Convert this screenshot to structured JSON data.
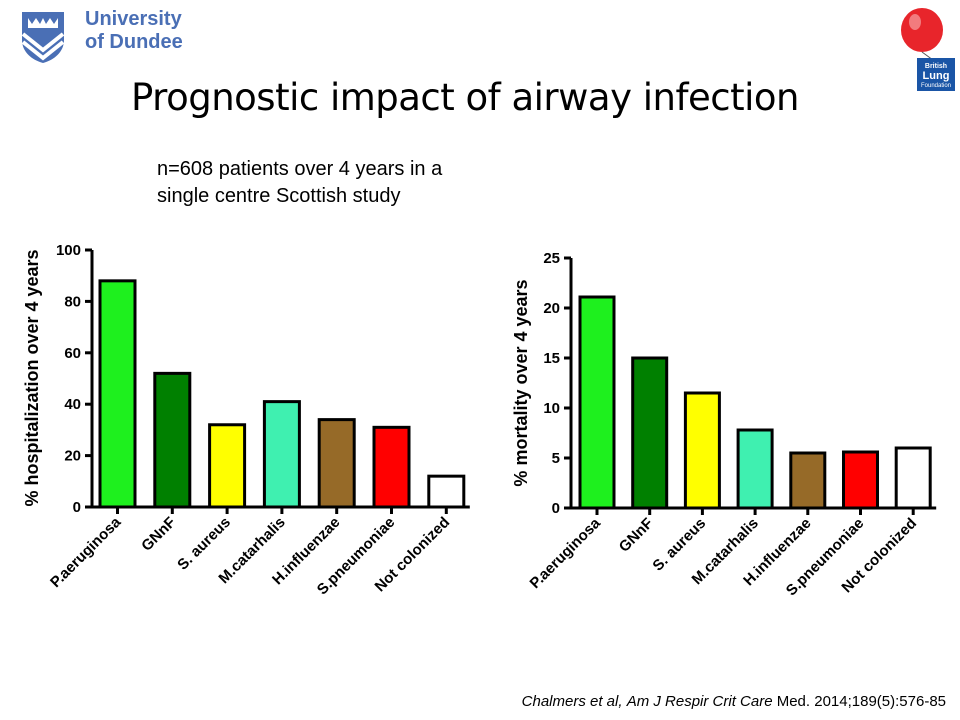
{
  "header": {
    "logo_line1": "University",
    "logo_line2": "of Dundee",
    "blf_line1": "British",
    "blf_line2": "Lung",
    "blf_line3": "Foundation"
  },
  "title": "Prognostic impact of airway infection",
  "subtitle_line1": "n=608 patients over 4 years in a",
  "subtitle_line2": "single centre Scottish study",
  "citation": {
    "authors": "Chalmers et al,",
    "journal": "Am J Respir Crit Care",
    "ref": " Med. 2014;189(5):576-85"
  },
  "colors": {
    "brand": "#4a6fb5",
    "balloon": "#e8252b",
    "bars": [
      "#1ef01e",
      "#008000",
      "#ffff00",
      "#3ff0b0",
      "#966a28",
      "#ff0000",
      "#ffffff"
    ]
  },
  "chart_data": [
    {
      "type": "bar",
      "categories": [
        "P.aeruginosa",
        "GNnF",
        "S. aureus",
        "M.catarhalis",
        "H.influenzae",
        "S.pneumoniae",
        "Not colonized"
      ],
      "values": [
        88,
        52,
        32,
        41,
        34,
        31,
        12
      ],
      "ylabel": "% hospitalization over 4 years",
      "ylim": [
        0,
        100
      ],
      "yticks": [
        0,
        20,
        40,
        60,
        80,
        100
      ],
      "grid": false
    },
    {
      "type": "bar",
      "categories": [
        "P.aeruginosa",
        "GNnF",
        "S. aureus",
        "M.catarhalis",
        "H.influenzae",
        "S.pneumoniae",
        "Not colonized"
      ],
      "values": [
        21.1,
        15,
        11.5,
        7.8,
        5.5,
        5.6,
        6
      ],
      "ylabel": "% mortality over 4 years",
      "ylim": [
        0,
        25
      ],
      "yticks": [
        0,
        5,
        10,
        15,
        20,
        25
      ],
      "grid": false
    }
  ]
}
